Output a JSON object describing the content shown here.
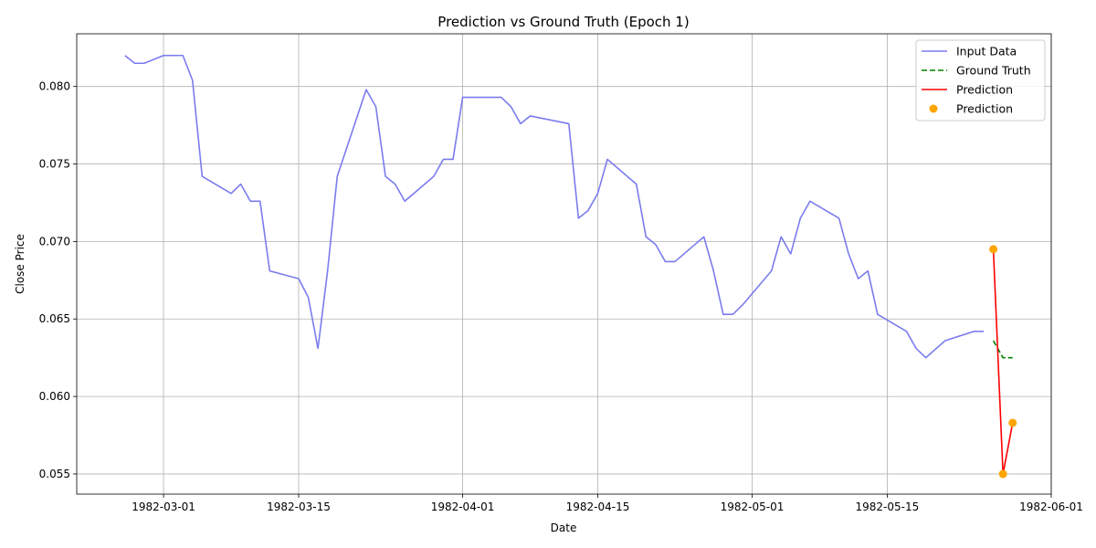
{
  "chart_data": {
    "type": "line",
    "title": "Prediction vs Ground Truth (Epoch 1)",
    "xlabel": "Date",
    "ylabel": "Close Price",
    "x_axis": "date",
    "xlim": [
      "1982-02-20",
      "1982-06-01"
    ],
    "ylim": [
      0.0537,
      0.0834
    ],
    "grid": true,
    "legend_position": "top-right",
    "x_ticks": [
      "1982-03-01",
      "1982-03-15",
      "1982-04-01",
      "1982-04-15",
      "1982-05-01",
      "1982-05-15",
      "1982-06-01"
    ],
    "y_ticks": [
      0.055,
      0.06,
      0.065,
      0.07,
      0.075,
      0.08
    ],
    "y_tick_labels": [
      "0.055",
      "0.060",
      "0.065",
      "0.070",
      "0.075",
      "0.080"
    ],
    "series": [
      {
        "name": "Input Data",
        "style": "line",
        "color": "#7b7bef",
        "points": [
          [
            "1982-02-25",
            0.082
          ],
          [
            "1982-02-26",
            0.0815
          ],
          [
            "1982-02-27",
            0.0815
          ],
          [
            "1982-03-01",
            0.082
          ],
          [
            "1982-03-03",
            0.082
          ],
          [
            "1982-03-04",
            0.0804
          ],
          [
            "1982-03-05",
            0.0742
          ],
          [
            "1982-03-08",
            0.0731
          ],
          [
            "1982-03-09",
            0.0737
          ],
          [
            "1982-03-10",
            0.0726
          ],
          [
            "1982-03-11",
            0.0726
          ],
          [
            "1982-03-12",
            0.0681
          ],
          [
            "1982-03-15",
            0.0676
          ],
          [
            "1982-03-16",
            0.0664
          ],
          [
            "1982-03-17",
            0.0631
          ],
          [
            "1982-03-18",
            0.0681
          ],
          [
            "1982-03-19",
            0.0742
          ],
          [
            "1982-03-22",
            0.0798
          ],
          [
            "1982-03-23",
            0.0787
          ],
          [
            "1982-03-24",
            0.0742
          ],
          [
            "1982-03-25",
            0.0737
          ],
          [
            "1982-03-26",
            0.0726
          ],
          [
            "1982-03-29",
            0.0742
          ],
          [
            "1982-03-30",
            0.0753
          ],
          [
            "1982-03-31",
            0.0753
          ],
          [
            "1982-04-01",
            0.0793
          ],
          [
            "1982-04-05",
            0.0793
          ],
          [
            "1982-04-06",
            0.0787
          ],
          [
            "1982-04-07",
            0.0776
          ],
          [
            "1982-04-08",
            0.0781
          ],
          [
            "1982-04-12",
            0.0776
          ],
          [
            "1982-04-13",
            0.0715
          ],
          [
            "1982-04-14",
            0.072
          ],
          [
            "1982-04-15",
            0.0731
          ],
          [
            "1982-04-16",
            0.0753
          ],
          [
            "1982-04-19",
            0.0737
          ],
          [
            "1982-04-20",
            0.0703
          ],
          [
            "1982-04-21",
            0.0698
          ],
          [
            "1982-04-22",
            0.0687
          ],
          [
            "1982-04-23",
            0.0687
          ],
          [
            "1982-04-26",
            0.0703
          ],
          [
            "1982-04-27",
            0.0681
          ],
          [
            "1982-04-28",
            0.0653
          ],
          [
            "1982-04-29",
            0.0653
          ],
          [
            "1982-04-30",
            0.0659
          ],
          [
            "1982-05-03",
            0.0681
          ],
          [
            "1982-05-04",
            0.0703
          ],
          [
            "1982-05-05",
            0.0692
          ],
          [
            "1982-05-06",
            0.0715
          ],
          [
            "1982-05-07",
            0.0726
          ],
          [
            "1982-05-10",
            0.0715
          ],
          [
            "1982-05-11",
            0.0692
          ],
          [
            "1982-05-12",
            0.0676
          ],
          [
            "1982-05-13",
            0.0681
          ],
          [
            "1982-05-14",
            0.0653
          ],
          [
            "1982-05-17",
            0.0642
          ],
          [
            "1982-05-18",
            0.0631
          ],
          [
            "1982-05-19",
            0.0625
          ],
          [
            "1982-05-21",
            0.0636
          ],
          [
            "1982-05-24",
            0.0642
          ],
          [
            "1982-05-25",
            0.0642
          ]
        ]
      },
      {
        "name": "Ground Truth",
        "style": "dashed",
        "color": "#008000",
        "points": [
          [
            "1982-05-26",
            0.0636
          ],
          [
            "1982-05-27",
            0.0625
          ],
          [
            "1982-05-28",
            0.0625
          ]
        ]
      },
      {
        "name": "Prediction",
        "style": "line",
        "color": "#ff0000",
        "points": [
          [
            "1982-05-26",
            0.0695
          ],
          [
            "1982-05-27",
            0.055
          ],
          [
            "1982-05-28",
            0.0583
          ]
        ]
      },
      {
        "name": "Prediction",
        "style": "scatter",
        "color": "#ffa500",
        "points": [
          [
            "1982-05-26",
            0.0695
          ],
          [
            "1982-05-27",
            0.055
          ],
          [
            "1982-05-28",
            0.0583
          ]
        ]
      }
    ]
  }
}
